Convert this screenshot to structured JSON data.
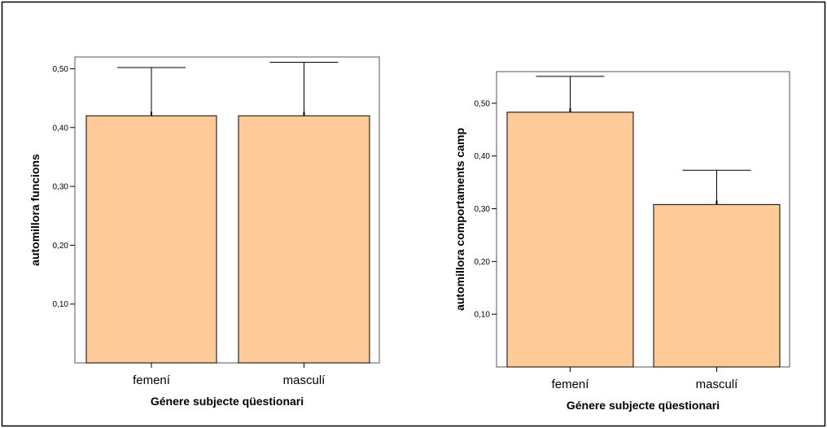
{
  "colors": {
    "bar_fill": "#FECB98",
    "bar_stroke": "#000000",
    "background": "#FFFFFF"
  },
  "chart_data": [
    {
      "type": "bar",
      "categories": [
        "femení",
        "masculí"
      ],
      "values": [
        0.42,
        0.42
      ],
      "error_upper": [
        0.502,
        0.511
      ],
      "xlabel": "Génere subjecte qüestionari",
      "ylabel": "automillora funcions",
      "yticks": [
        0.1,
        0.2,
        0.3,
        0.4,
        0.5
      ],
      "ytick_labels": [
        "0,10",
        "0,20",
        "0,30",
        "0,40",
        "0,50"
      ],
      "ylim": [
        0,
        0.52
      ],
      "grid": false,
      "legend": "none"
    },
    {
      "type": "bar",
      "categories": [
        "femení",
        "masculí"
      ],
      "values": [
        0.483,
        0.308
      ],
      "error_upper": [
        0.551,
        0.373
      ],
      "xlabel": "Génere subjecte qüestionari",
      "ylabel": "automillora comportaments camp",
      "yticks": [
        0.1,
        0.2,
        0.3,
        0.4,
        0.5
      ],
      "ytick_labels": [
        "0,10",
        "0,20",
        "0,30",
        "0,40",
        "0,50"
      ],
      "ylim": [
        0,
        0.56
      ],
      "grid": false,
      "legend": "none"
    }
  ]
}
